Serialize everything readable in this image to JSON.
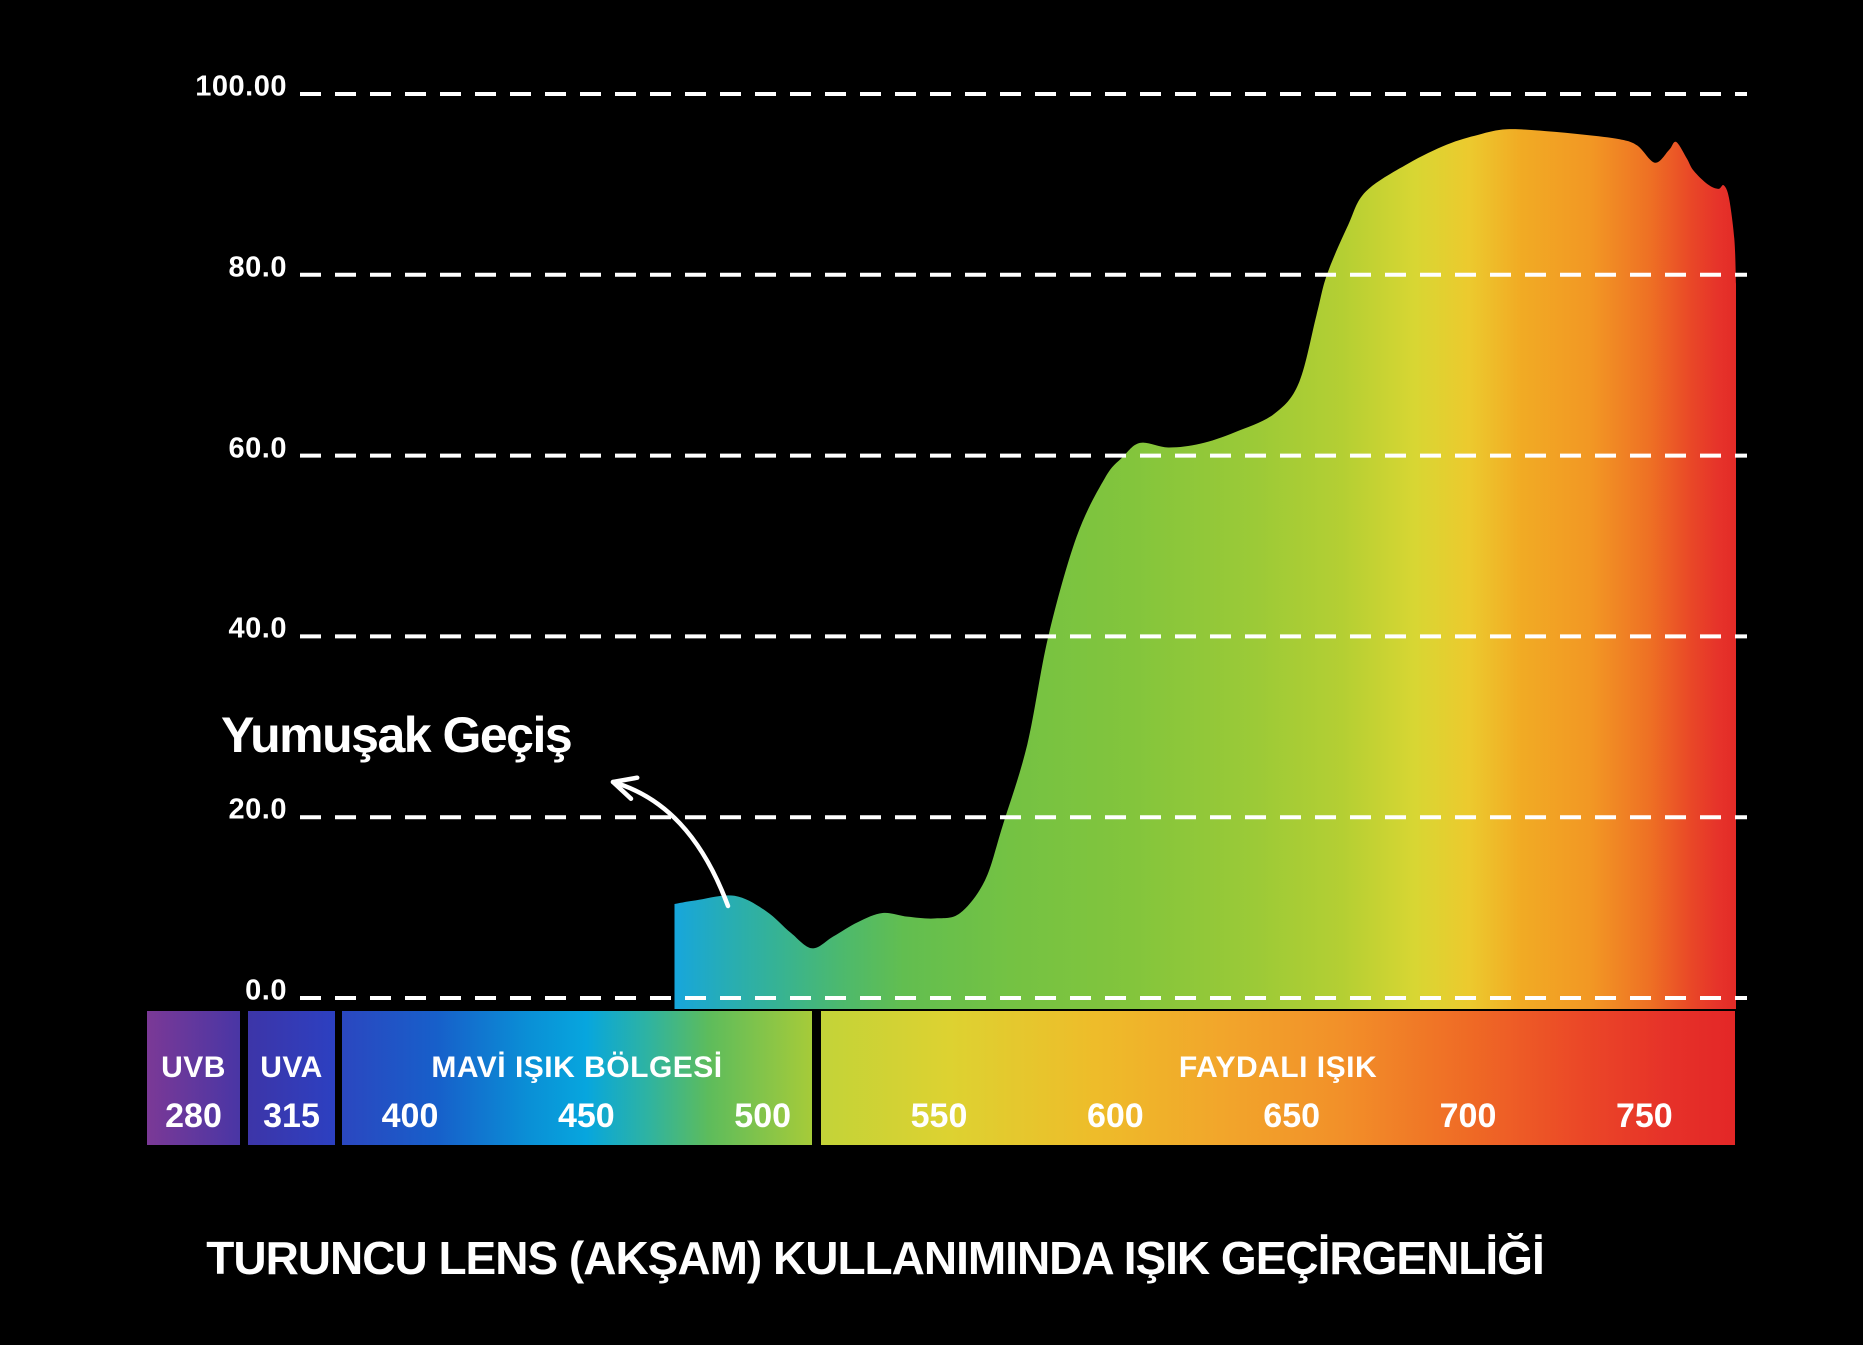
{
  "title": "TURUNCU LENS (AKŞAM) KULLANIMINDA IŞIK GEÇİRGENLİĞİ",
  "annotation": {
    "label": "Yumuşak Geçiş"
  },
  "colors": {
    "background": "#000000",
    "grid": "#ffffff",
    "text": "#ffffff"
  },
  "chart_data": {
    "type": "area",
    "title": "TURUNCU LENS (AKŞAM) KULLANIMINDA IŞIK GEÇİRGENLİĞİ",
    "x_unit": "nm",
    "x_range": [
      475,
      776
    ],
    "ylim": [
      0,
      100
    ],
    "grid": "dashed-horizontal",
    "legend": "none",
    "y_ticks": [
      {
        "label": "100.00",
        "value": 100
      },
      {
        "label": "80.0",
        "value": 80
      },
      {
        "label": "60.0",
        "value": 60
      },
      {
        "label": "40.0",
        "value": 40
      },
      {
        "label": "20.0",
        "value": 20
      },
      {
        "label": "0.0",
        "value": 0
      }
    ],
    "annotation": {
      "label": "Yumuşak Geçiş",
      "target_nm": 492,
      "target_pct": 11.3
    },
    "points": [
      [
        475,
        10.4
      ],
      [
        481,
        10.8
      ],
      [
        492,
        11.3
      ],
      [
        501,
        9.6
      ],
      [
        508,
        7.2
      ],
      [
        514,
        5.5
      ],
      [
        520,
        6.8
      ],
      [
        527,
        8.4
      ],
      [
        534,
        9.4
      ],
      [
        541,
        9.0
      ],
      [
        549,
        8.8
      ],
      [
        556,
        9.4
      ],
      [
        563,
        13
      ],
      [
        568,
        19
      ],
      [
        575,
        28
      ],
      [
        581,
        40
      ],
      [
        589,
        51
      ],
      [
        597,
        57.5
      ],
      [
        602,
        59.8
      ],
      [
        607,
        61.4
      ],
      [
        615,
        60.9
      ],
      [
        624,
        61.3
      ],
      [
        634,
        62.6
      ],
      [
        645,
        64.6
      ],
      [
        652,
        68
      ],
      [
        657,
        75.5
      ],
      [
        660,
        80
      ],
      [
        666,
        85.5
      ],
      [
        671,
        89.2
      ],
      [
        683,
        92.3
      ],
      [
        694,
        94.4
      ],
      [
        703,
        95.5
      ],
      [
        711,
        96.1
      ],
      [
        722,
        95.9
      ],
      [
        733,
        95.5
      ],
      [
        743,
        95.0
      ],
      [
        748,
        94.3
      ],
      [
        753,
        92.4
      ],
      [
        757,
        93.8
      ],
      [
        759,
        94.7
      ],
      [
        762,
        92.9
      ],
      [
        764,
        91.5
      ],
      [
        768,
        90.0
      ],
      [
        771,
        89.5
      ],
      [
        772.5,
        89.9
      ],
      [
        774,
        88.5
      ],
      [
        775.5,
        84
      ],
      [
        776,
        79
      ]
    ],
    "area_gradient": [
      {
        "nm": 475,
        "color": "#17a6dc"
      },
      {
        "nm": 490,
        "color": "#27adb4"
      },
      {
        "nm": 505,
        "color": "#37b392"
      },
      {
        "nm": 522,
        "color": "#4cb96e"
      },
      {
        "nm": 540,
        "color": "#62be50"
      },
      {
        "nm": 570,
        "color": "#74c243"
      },
      {
        "nm": 605,
        "color": "#83c53c"
      },
      {
        "nm": 640,
        "color": "#9cca37"
      },
      {
        "nm": 665,
        "color": "#b5cf33"
      },
      {
        "nm": 685,
        "color": "#d8d633"
      },
      {
        "nm": 700,
        "color": "#ecca2e"
      },
      {
        "nm": 715,
        "color": "#f1ab24"
      },
      {
        "nm": 735,
        "color": "#f29724"
      },
      {
        "nm": 752,
        "color": "#ee6f24"
      },
      {
        "nm": 763,
        "color": "#e94827"
      },
      {
        "nm": 771,
        "color": "#e6332a"
      },
      {
        "nm": 776,
        "color": "#e32b27"
      }
    ]
  },
  "x_axis_bar": {
    "segments": [
      {
        "id": "uvb",
        "name": "UVB",
        "ticks": [
          {
            "label": "280"
          }
        ],
        "gradient": [
          {
            "at": 0,
            "color": "#7b3996"
          },
          {
            "at": 1,
            "color": "#4936a5"
          }
        ]
      },
      {
        "id": "uva",
        "name": "UVA",
        "ticks": [
          {
            "label": "315"
          }
        ],
        "gradient": [
          {
            "at": 0,
            "color": "#3d35a8"
          },
          {
            "at": 1,
            "color": "#2c40c1"
          }
        ]
      },
      {
        "id": "blue",
        "name": "MAVİ IŞIK BÖLGESİ",
        "ticks": [
          {
            "label": "400",
            "nm": 400
          },
          {
            "label": "450",
            "nm": 450
          },
          {
            "label": "500",
            "nm": 500
          }
        ],
        "gradient": [
          {
            "at": 0,
            "color": "#2b47c0"
          },
          {
            "at": 0.2,
            "color": "#175fca"
          },
          {
            "at": 0.4,
            "color": "#0a90d6"
          },
          {
            "at": 0.52,
            "color": "#07a6de"
          },
          {
            "at": 0.65,
            "color": "#2eb3a2"
          },
          {
            "at": 0.78,
            "color": "#5dbc5c"
          },
          {
            "at": 1,
            "color": "#a6cb39"
          }
        ]
      },
      {
        "id": "useful",
        "name": "FAYDALI IŞIK",
        "ticks": [
          {
            "label": "550",
            "nm": 550
          },
          {
            "label": "600",
            "nm": 600
          },
          {
            "label": "650",
            "nm": 650
          },
          {
            "label": "700",
            "nm": 700
          },
          {
            "label": "750",
            "nm": 750
          }
        ],
        "gradient": [
          {
            "at": 0,
            "color": "#c3d338"
          },
          {
            "at": 0.14,
            "color": "#ddd231"
          },
          {
            "at": 0.3,
            "color": "#eebc2a"
          },
          {
            "at": 0.45,
            "color": "#f2a42b"
          },
          {
            "at": 0.57,
            "color": "#f29029"
          },
          {
            "at": 0.71,
            "color": "#ef6a25"
          },
          {
            "at": 0.83,
            "color": "#eb4827"
          },
          {
            "at": 0.93,
            "color": "#e63129"
          },
          {
            "at": 1,
            "color": "#e32727"
          }
        ]
      }
    ]
  }
}
